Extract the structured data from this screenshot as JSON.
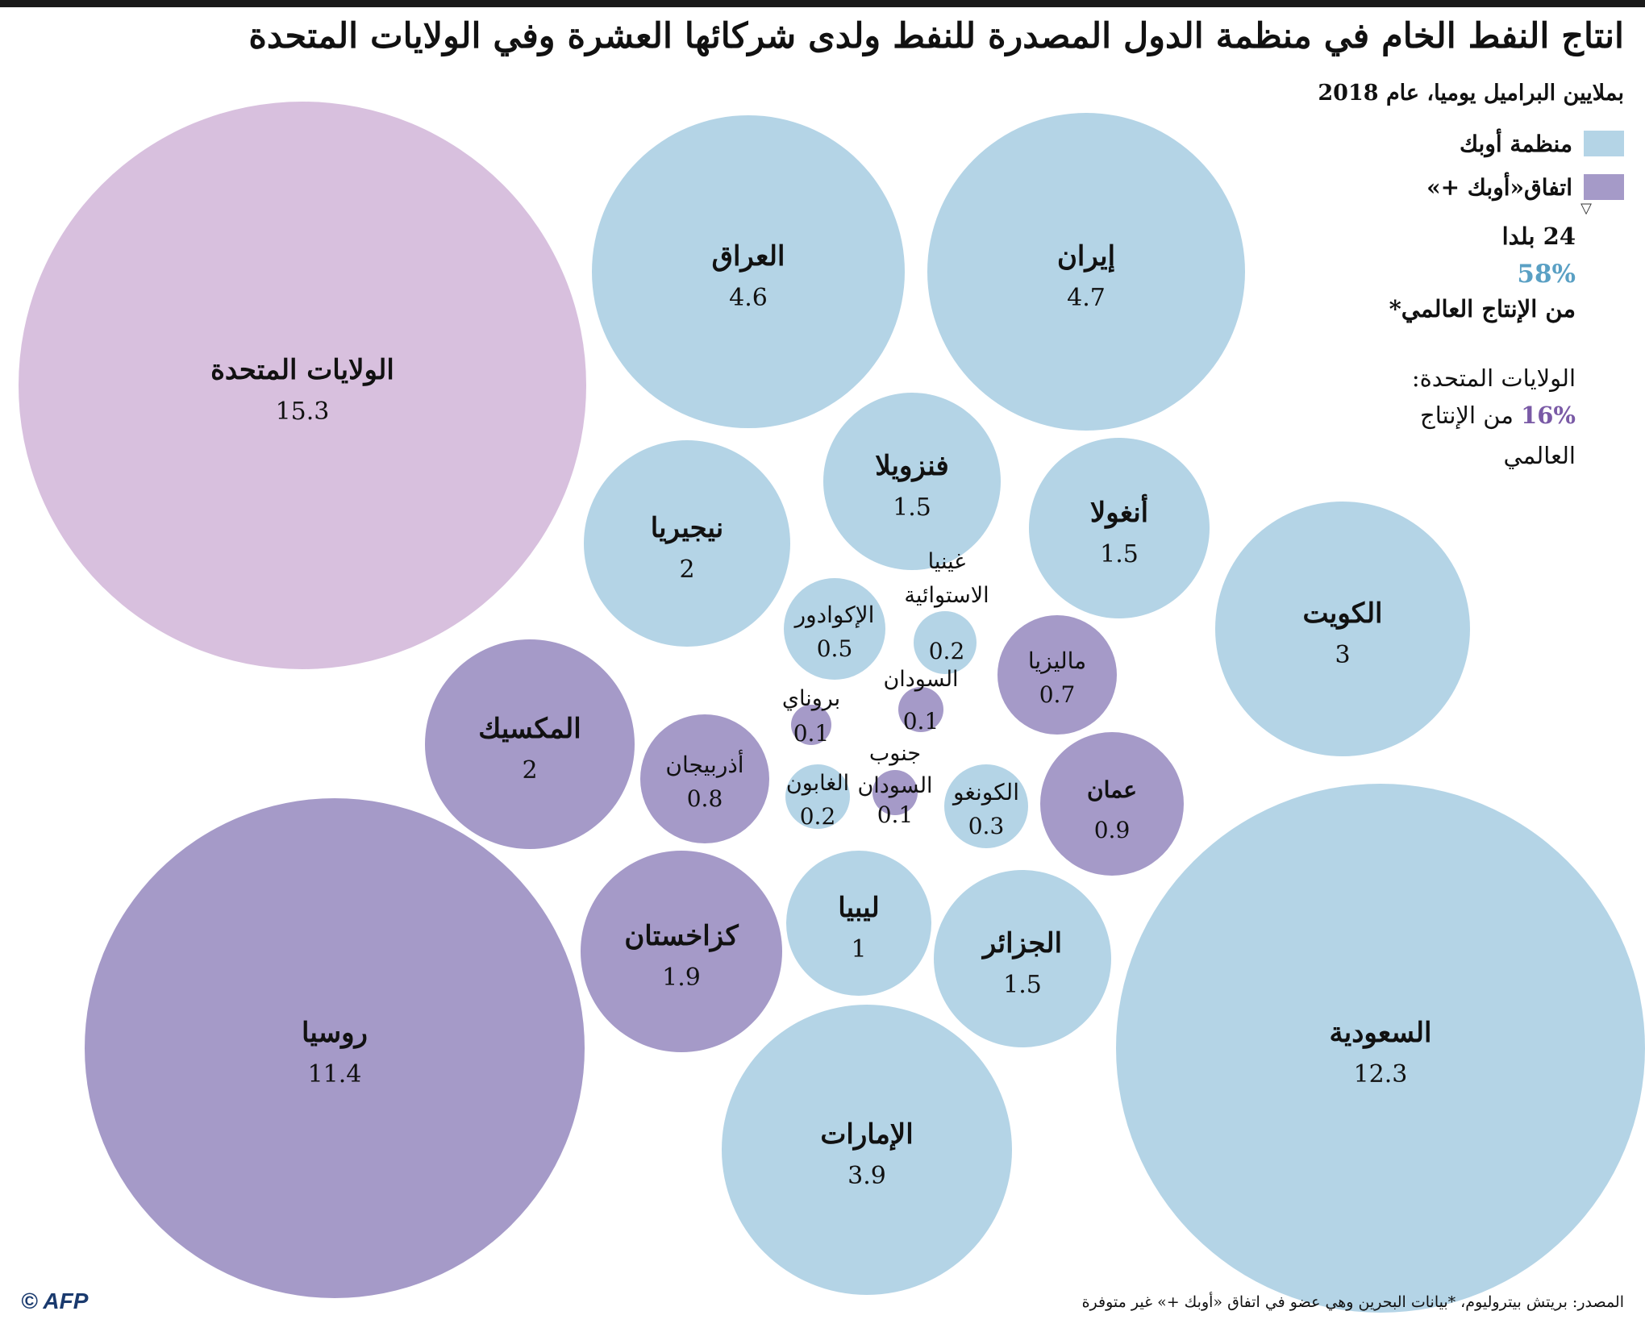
{
  "title": "انتاج النفط الخام في منظمة الدول المصدرة للنفط ولدى شركائها العشرة وفي الولايات المتحدة",
  "subtitle": "بملايين البراميل يوميا، عام 2018",
  "legend": {
    "opec": {
      "label": "منظمة أوبك",
      "color": "#b4d4e6"
    },
    "opec_plus": {
      "label": "اتفاق«أوبك +»",
      "color": "#a59ac8"
    },
    "us": {
      "color": "#d8c0de"
    }
  },
  "stats": {
    "arrow": "▽",
    "count": "24 بلدا",
    "pct": "58%",
    "world": "من الإنتاج العالمي*",
    "us_label": "الولايات المتحدة:",
    "us_pct": "16%",
    "us_text": "من الإنتاج",
    "us_world": "العالمي"
  },
  "source": "المصدر: بريتش بيتروليوم، *بيانات البحرين وهي عضو في اتفاق «أوبك +» غير متوفرة",
  "logo": "© AFP",
  "chart_data": {
    "type": "bubble",
    "unit": "مليون برميل يوميا",
    "items": [
      {
        "name": "الولايات المتحدة",
        "value": "15.3",
        "group": "us"
      },
      {
        "name": "السعودية",
        "value": "12.3",
        "group": "opec"
      },
      {
        "name": "روسيا",
        "value": "11.4",
        "group": "opec_plus"
      },
      {
        "name": "إيران",
        "value": "4.7",
        "group": "opec"
      },
      {
        "name": "العراق",
        "value": "4.6",
        "group": "opec"
      },
      {
        "name": "الإمارات",
        "value": "3.9",
        "group": "opec"
      },
      {
        "name": "الكويت",
        "value": "3",
        "group": "opec"
      },
      {
        "name": "نيجيريا",
        "value": "2",
        "group": "opec"
      },
      {
        "name": "المكسيك",
        "value": "2",
        "group": "opec_plus"
      },
      {
        "name": "كزاخستان",
        "value": "1.9",
        "group": "opec_plus"
      },
      {
        "name": "فنزويلا",
        "value": "1.5",
        "group": "opec"
      },
      {
        "name": "أنغولا",
        "value": "1.5",
        "group": "opec"
      },
      {
        "name": "الجزائر",
        "value": "1.5",
        "group": "opec"
      },
      {
        "name": "ليبيا",
        "value": "1",
        "group": "opec"
      },
      {
        "name": "عمان",
        "value": "0.9",
        "group": "opec_plus"
      },
      {
        "name": "أذربيجان",
        "value": "0.8",
        "group": "opec_plus"
      },
      {
        "name": "ماليزيا",
        "value": "0.7",
        "group": "opec_plus"
      },
      {
        "name": "الإكوادور",
        "value": "0.5",
        "group": "opec"
      },
      {
        "name": "الكونغو",
        "value": "0.3",
        "group": "opec"
      },
      {
        "name": "غينيا الاستوائية",
        "value": "0.2",
        "group": "opec"
      },
      {
        "name": "الغابون",
        "value": "0.2",
        "group": "opec"
      },
      {
        "name": "السودان",
        "value": "0.1",
        "group": "opec_plus"
      },
      {
        "name": "بروناي",
        "value": "0.1",
        "group": "opec_plus"
      },
      {
        "name": "جنوب السودان",
        "value": "0.1",
        "group": "opec_plus"
      }
    ]
  }
}
